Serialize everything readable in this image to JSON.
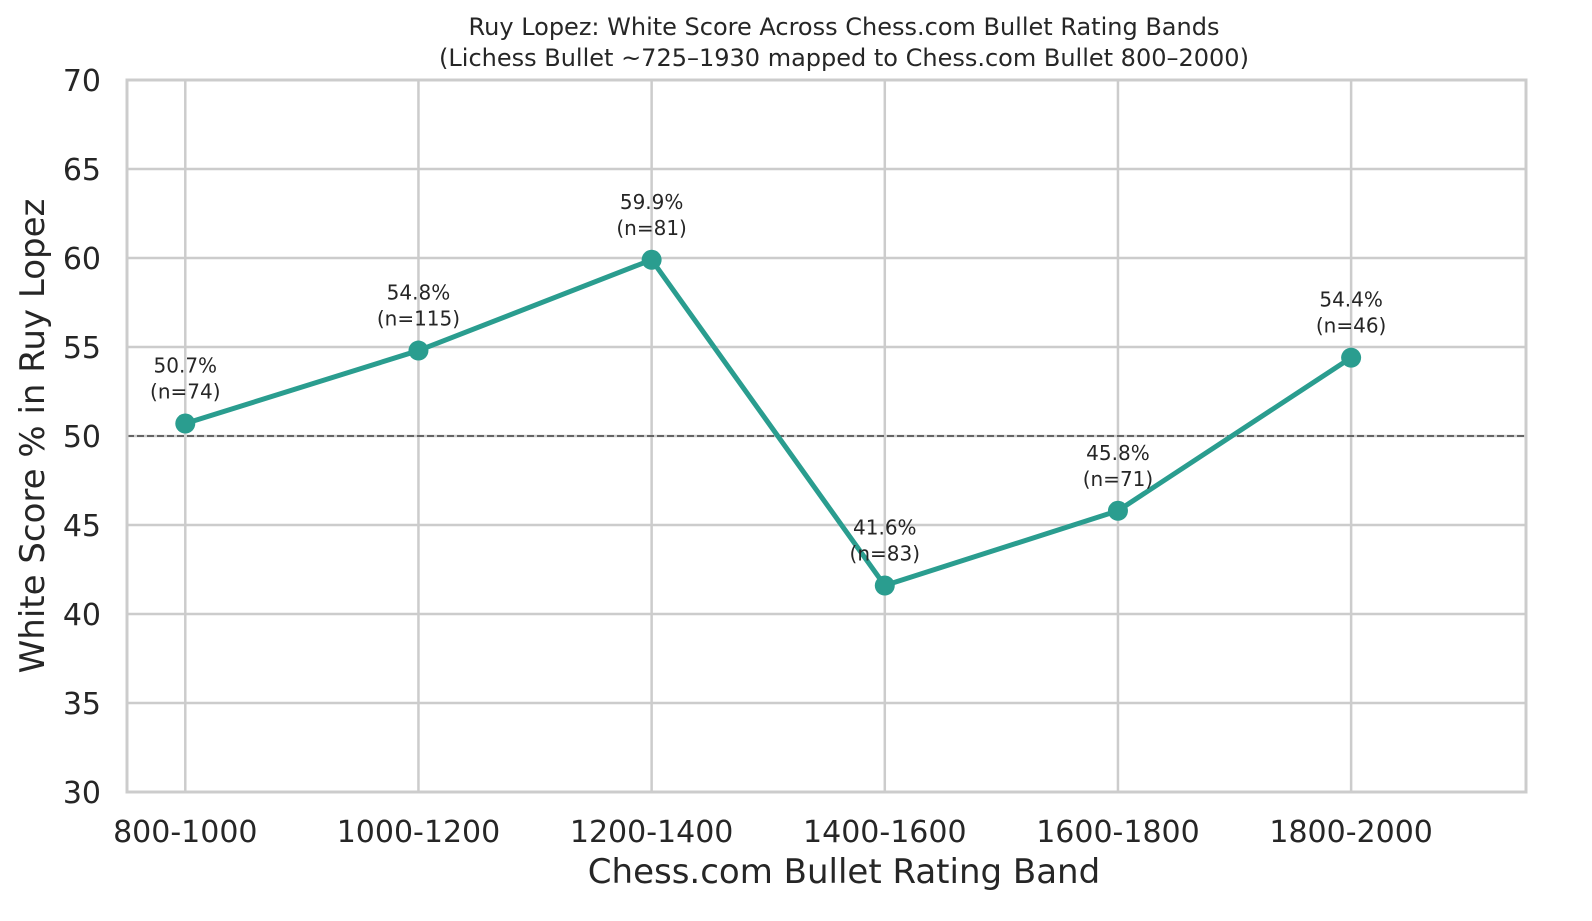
{
  "chart_data": {
    "type": "line",
    "title": "Ruy Lopez: White Score Across Chess.com Bullet Rating Bands",
    "subtitle": "(Lichess Bullet ~725–1930 mapped to Chess.com Bullet 800–2000)",
    "xlabel": "Chess.com Bullet Rating Band",
    "ylabel": "White Score % in Ruy Lopez",
    "categories": [
      "800-1000",
      "1000-1200",
      "1200-1400",
      "1400-1600",
      "1600-1800",
      "1800-2000"
    ],
    "series": [
      {
        "values": [
          50.7,
          54.8,
          59.9,
          41.6,
          45.8,
          54.4
        ],
        "color": "#2a9d8f"
      }
    ],
    "annotations": [
      {
        "pct": "50.7%",
        "n": "(n=74)"
      },
      {
        "pct": "54.8%",
        "n": "(n=115)"
      },
      {
        "pct": "59.9%",
        "n": "(n=81)"
      },
      {
        "pct": "41.6%",
        "n": "(n=83)"
      },
      {
        "pct": "45.8%",
        "n": "(n=71)"
      },
      {
        "pct": "54.4%",
        "n": "(n=46)"
      }
    ],
    "reference_line": {
      "value": 50,
      "style": "dashed",
      "color": "#555555"
    },
    "ylim": [
      30,
      70
    ],
    "yticks": [
      "30",
      "35",
      "40",
      "45",
      "50",
      "55",
      "60",
      "65",
      "70"
    ],
    "ytick_values": [
      30,
      35,
      40,
      45,
      50,
      55,
      60,
      65,
      70
    ],
    "grid": true,
    "legend": "none"
  }
}
